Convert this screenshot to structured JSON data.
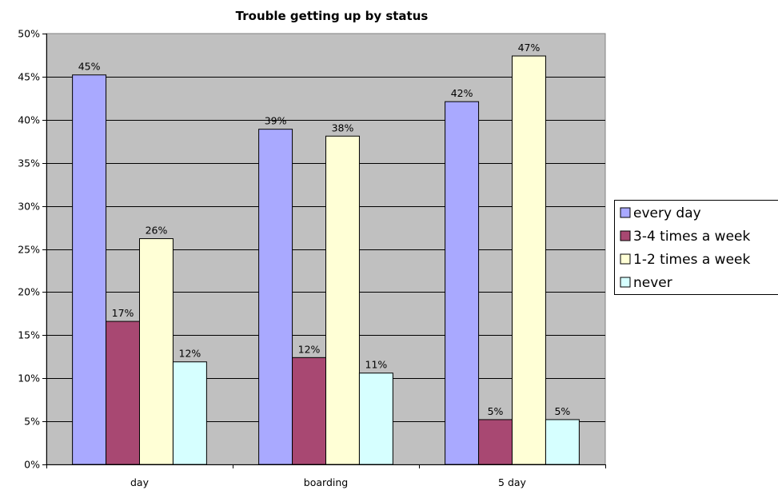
{
  "chart_data": {
    "type": "bar",
    "title": "Trouble getting up by status",
    "categories": [
      "day",
      "boarding",
      "5 day"
    ],
    "ylim": [
      0,
      50
    ],
    "yticks": [
      "0%",
      "5%",
      "10%",
      "15%",
      "20%",
      "25%",
      "30%",
      "35%",
      "40%",
      "45%",
      "50%"
    ],
    "grid": true,
    "legend_position": "right",
    "series": [
      {
        "name": "every day",
        "color": "#a9a9ff",
        "values": [
          45.2,
          38.9,
          42.1
        ],
        "labels": [
          "45%",
          "39%",
          "42%"
        ]
      },
      {
        "name": "3-4 times a week",
        "color": "#a84872",
        "values": [
          16.6,
          12.4,
          5.2
        ],
        "labels": [
          "17%",
          "12%",
          "5%"
        ]
      },
      {
        "name": "1-2 times a week",
        "color": "#ffffd6",
        "values": [
          26.2,
          38.1,
          47.4
        ],
        "labels": [
          "26%",
          "38%",
          "47%"
        ]
      },
      {
        "name": "never",
        "color": "#d6ffff",
        "values": [
          11.9,
          10.6,
          5.2
        ],
        "labels": [
          "12%",
          "11%",
          "5%"
        ]
      }
    ]
  }
}
